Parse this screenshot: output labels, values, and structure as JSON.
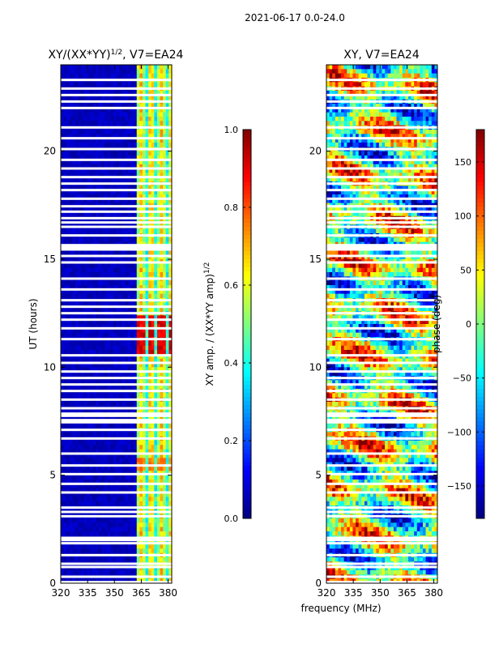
{
  "figure": {
    "suptitle": "2021-06-17 0.0-24.0",
    "xlabel": "frequency (MHz)"
  },
  "chart_data": [
    {
      "type": "heatmap",
      "title": "XY/(XX*YY)",
      "title_sup": "1/2",
      "title_suffix": ", V7=EA24",
      "xlim": [
        320,
        382
      ],
      "ylim": [
        0,
        24
      ],
      "xticks": [
        320,
        335,
        350,
        365,
        380
      ],
      "yticks": [
        0,
        5,
        10,
        15,
        20
      ],
      "ylabel": "UT (hours)",
      "colorbar": {
        "label": "XY amp. / (XX*YY amp)",
        "label_sup": "1/2",
        "vmin": 0.0,
        "vmax": 1.0,
        "ticks": [
          0.0,
          0.2,
          0.4,
          0.6,
          0.8,
          1.0
        ],
        "tick_labels": [
          "0.0",
          "0.2",
          "0.4",
          "0.6",
          "0.8",
          "1.0"
        ]
      },
      "notes": "Low amplitude (~0.05) below 362 MHz; moderate amplitude (~0.2-0.6) in bands 362-382 MHz; peak near 0.9 at UT 11-12 h."
    },
    {
      "type": "heatmap",
      "title": "XY, V7=EA24",
      "xlim": [
        320,
        382
      ],
      "ylim": [
        0,
        24
      ],
      "xticks": [
        320,
        335,
        350,
        365,
        380
      ],
      "yticks": [
        0,
        5,
        10,
        15,
        20
      ],
      "colorbar": {
        "label": "phase (deg)",
        "vmin": -180,
        "vmax": 180,
        "ticks": [
          -150,
          -100,
          -50,
          0,
          50,
          100,
          150
        ],
        "tick_labels": [
          "−150",
          "−100",
          "−50",
          "0",
          "50",
          "100",
          "150"
        ]
      },
      "notes": "Phase varies across full range -180 to 180 deg with noisy structure."
    }
  ],
  "flagged_ut_hours": [
    0.05,
    0.3,
    0.75,
    0.9,
    1.3,
    1.85,
    2.0,
    2.1,
    3.1,
    3.3,
    3.5,
    4.2,
    4.6,
    5.05,
    5.45,
    6.0,
    6.7,
    7.1,
    7.45,
    7.55,
    7.75,
    7.85,
    8.1,
    8.5,
    8.9,
    9.2,
    9.5,
    9.8,
    10.2,
    10.55,
    11.3,
    11.8,
    12.2,
    12.5,
    12.8,
    13.1,
    13.6,
    14.1,
    14.85,
    15.15,
    15.45,
    15.55,
    15.65,
    16.1,
    16.5,
    16.7,
    16.9,
    17.2,
    17.45,
    17.8,
    18.2,
    18.5,
    18.8,
    19.2,
    19.6,
    20.1,
    20.6,
    21.1,
    22.0,
    22.3,
    22.6,
    22.9,
    23.3
  ]
}
